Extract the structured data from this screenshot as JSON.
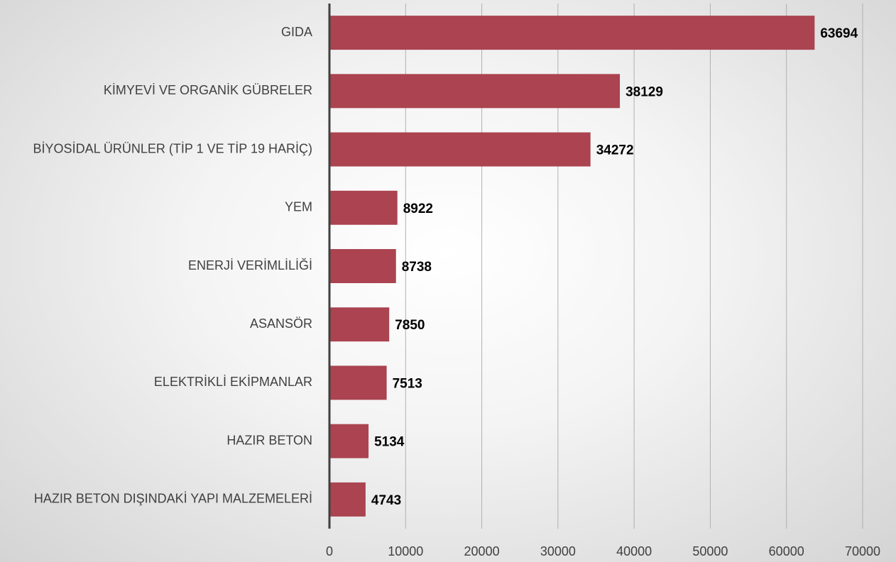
{
  "chart_data": {
    "type": "bar",
    "orientation": "horizontal",
    "categories": [
      "GIDA",
      "KİMYEVİ VE ORGANİK GÜBRELER",
      "BİYOSİDAL ÜRÜNLER (TİP 1 VE TİP 19 HARİÇ)",
      "YEM",
      "ENERJİ VERİMLİLİĞİ",
      "ASANSÖR",
      "ELEKTRİKLİ EKİPMANLAR",
      "HAZIR BETON",
      "HAZIR BETON DIŞINDAKİ YAPI MALZEMELERİ"
    ],
    "values": [
      63694,
      38129,
      34272,
      8922,
      8738,
      7850,
      7513,
      5134,
      4743
    ],
    "color": "#ab4350",
    "xlim": [
      0,
      70000
    ],
    "xticks": [
      0,
      10000,
      20000,
      30000,
      40000,
      50000,
      60000,
      70000
    ],
    "grid": true
  }
}
